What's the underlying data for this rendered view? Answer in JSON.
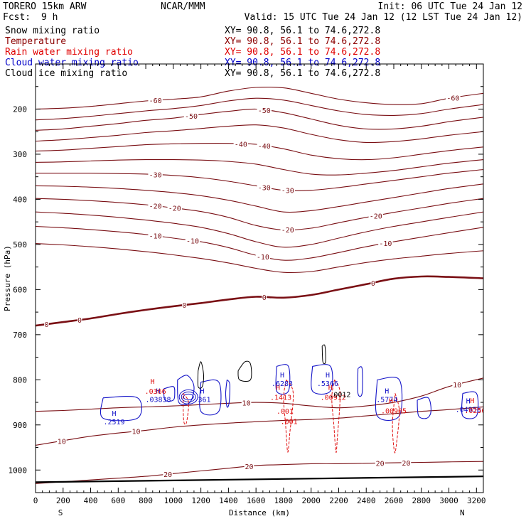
{
  "header": {
    "model": "TORERO  15km ARW",
    "org": "NCAR/MMM",
    "init": "Init: 06 UTC Tue 24 Jan 12",
    "fcst_label": "Fcst:",
    "fcst_value": "9 h",
    "valid": "Valid: 15 UTC Tue 24 Jan 12 (12 LST Tue 24 Jan 12)"
  },
  "fields": [
    {
      "name": "Snow mixing ratio",
      "color": "#000000",
      "xy": "XY=  90.8, 56.1 to  74.6,272.8"
    },
    {
      "name": "Temperature",
      "color": "#8b0000",
      "xy": "XY=  90.8, 56.1 to  74.6,272.8"
    },
    {
      "name": "Rain water mixing ratio",
      "color": "#e00000",
      "xy": "XY=  90.8, 56.1 to  74.6,272.8"
    },
    {
      "name": "Cloud water mixing ratio",
      "color": "#0000c8",
      "xy": "XY=  90.8, 56.1 to  74.6,272.8"
    },
    {
      "name": "Cloud ice mixing ratio",
      "color": "#000000",
      "xy": "XY=  90.8, 56.1 to  74.6,272.8"
    }
  ],
  "chart_data": {
    "type": "contour_cross_section",
    "xlabel": "Distance (km)",
    "ylabel": "Pressure (hPa)",
    "xlim": [
      0,
      3250
    ],
    "ylim": [
      1050,
      100
    ],
    "x_ticks": [
      0,
      200,
      400,
      600,
      800,
      1000,
      1200,
      1400,
      1600,
      1800,
      2000,
      2200,
      2400,
      2600,
      2800,
      3000,
      3200
    ],
    "y_ticks": [
      200,
      300,
      400,
      500,
      600,
      700,
      800,
      900,
      1000
    ],
    "endpoints": {
      "left": "S",
      "right": "N"
    },
    "temperature_contours": [
      {
        "level": -60,
        "x": [
          0,
          200,
          400,
          600,
          800,
          1000,
          1200,
          1400,
          1600,
          1800,
          2000,
          2200,
          2400,
          2600,
          2800,
          3000,
          3250
        ],
        "p": [
          200,
          198,
          194,
          188,
          182,
          178,
          173,
          160,
          152,
          153,
          165,
          178,
          186,
          190,
          188,
          176,
          165
        ],
        "labels": [
          [
            870,
            -60
          ],
          [
            3030,
            -60
          ]
        ]
      },
      {
        "level": -55,
        "x": [
          0,
          200,
          400,
          600,
          800,
          1000,
          1200,
          1400,
          1600,
          1800,
          2000,
          2200,
          2400,
          2600,
          2800,
          3000,
          3250
        ],
        "p": [
          224,
          221,
          216,
          210,
          204,
          199,
          192,
          182,
          176,
          180,
          192,
          204,
          212,
          214,
          210,
          200,
          190
        ],
        "labels": []
      },
      {
        "level": -50,
        "x": [
          0,
          200,
          400,
          600,
          800,
          1000,
          1200,
          1400,
          1600,
          1800,
          2000,
          2200,
          2400,
          2600,
          2800,
          3000,
          3250
        ],
        "p": [
          247,
          244,
          238,
          232,
          225,
          220,
          212,
          205,
          200,
          208,
          222,
          236,
          244,
          244,
          238,
          228,
          218
        ],
        "labels": [
          [
            1130,
            -50
          ],
          [
            1660,
            -50
          ]
        ]
      },
      {
        "level": -45,
        "x": [
          0,
          200,
          400,
          600,
          800,
          1000,
          1200,
          1400,
          1600,
          1800,
          2000,
          2200,
          2400,
          2600,
          2800,
          3000,
          3250
        ],
        "p": [
          271,
          268,
          263,
          258,
          252,
          248,
          243,
          238,
          235,
          242,
          256,
          268,
          274,
          272,
          266,
          258,
          250
        ],
        "labels": []
      },
      {
        "level": -40,
        "x": [
          0,
          200,
          400,
          600,
          800,
          1000,
          1200,
          1400,
          1600,
          1800,
          2000,
          2200,
          2400,
          2600,
          2800,
          3000,
          3250
        ],
        "p": [
          293,
          291,
          287,
          283,
          279,
          277,
          276,
          276,
          278,
          288,
          302,
          310,
          312,
          308,
          300,
          292,
          284
        ],
        "labels": [
          [
            1490,
            -40
          ],
          [
            1660,
            -40
          ]
        ]
      },
      {
        "level": -35,
        "x": [
          0,
          200,
          400,
          600,
          800,
          1000,
          1200,
          1400,
          1600,
          1800,
          2000,
          2200,
          2400,
          2600,
          2800,
          3000,
          3250
        ],
        "p": [
          318,
          317,
          315,
          313,
          312,
          312,
          313,
          316,
          322,
          334,
          344,
          346,
          342,
          336,
          328,
          320,
          312
        ],
        "labels": []
      },
      {
        "level": -30,
        "x": [
          0,
          200,
          400,
          600,
          800,
          1000,
          1200,
          1400,
          1600,
          1800,
          2000,
          2200,
          2400,
          2600,
          2800,
          3000,
          3250
        ],
        "p": [
          342,
          342,
          342,
          343,
          344,
          347,
          352,
          360,
          370,
          380,
          380,
          374,
          366,
          358,
          350,
          342,
          334
        ],
        "labels": [
          [
            870,
            -30
          ],
          [
            1660,
            -30
          ],
          [
            1830,
            -30
          ]
        ]
      },
      {
        "level": -25,
        "x": [
          0,
          200,
          400,
          600,
          800,
          1000,
          1200,
          1400,
          1600,
          1800,
          2000,
          2200,
          2400,
          2600,
          2800,
          3000,
          3250
        ],
        "p": [
          370,
          371,
          373,
          376,
          380,
          385,
          392,
          402,
          415,
          428,
          425,
          416,
          406,
          396,
          386,
          376,
          366
        ],
        "labels": []
      },
      {
        "level": -20,
        "x": [
          0,
          200,
          400,
          600,
          800,
          1000,
          1200,
          1400,
          1600,
          1800,
          2000,
          2200,
          2400,
          2600,
          2800,
          3000,
          3250
        ],
        "p": [
          398,
          400,
          403,
          407,
          412,
          419,
          427,
          440,
          458,
          468,
          464,
          452,
          440,
          429,
          419,
          409,
          398
        ],
        "labels": [
          [
            870,
            -20
          ],
          [
            1010,
            -20
          ],
          [
            1830,
            -20
          ],
          [
            2470,
            -20
          ]
        ]
      },
      {
        "level": -15,
        "x": [
          0,
          200,
          400,
          600,
          800,
          1000,
          1200,
          1400,
          1600,
          1800,
          2000,
          2200,
          2400,
          2600,
          2800,
          3000,
          3250
        ],
        "p": [
          428,
          431,
          435,
          440,
          446,
          453,
          462,
          476,
          494,
          506,
          500,
          486,
          472,
          460,
          450,
          440,
          428
        ],
        "labels": []
      },
      {
        "level": -10,
        "x": [
          0,
          200,
          400,
          600,
          800,
          1000,
          1200,
          1400,
          1600,
          1800,
          2000,
          2200,
          2400,
          2600,
          2800,
          3000,
          3250
        ],
        "p": [
          460,
          463,
          467,
          472,
          478,
          486,
          494,
          507,
          524,
          535,
          530,
          518,
          505,
          494,
          484,
          474,
          462
        ],
        "labels": [
          [
            870,
            -10
          ],
          [
            1140,
            -10
          ],
          [
            1650,
            -10
          ],
          [
            2540,
            -10
          ]
        ]
      },
      {
        "level": -5,
        "x": [
          0,
          200,
          400,
          600,
          800,
          1000,
          1200,
          1400,
          1600,
          1800,
          2000,
          2200,
          2400,
          2600,
          2800,
          3000,
          3250
        ],
        "p": [
          498,
          501,
          505,
          510,
          516,
          523,
          531,
          541,
          553,
          562,
          560,
          550,
          540,
          532,
          526,
          520,
          514
        ],
        "labels": []
      },
      {
        "level": 0,
        "x": [
          0,
          200,
          400,
          600,
          800,
          1000,
          1200,
          1400,
          1600,
          1800,
          2000,
          2200,
          2400,
          2600,
          2800,
          3000,
          3250
        ],
        "p": [
          680,
          672,
          664,
          654,
          645,
          637,
          630,
          622,
          616,
          618,
          612,
          600,
          588,
          576,
          571,
          572,
          575
        ],
        "labels": [
          [
            80,
            0
          ],
          [
            320,
            0
          ],
          [
            1080,
            0
          ],
          [
            1660,
            0
          ],
          [
            2450,
            0
          ]
        ],
        "bold": true
      },
      {
        "level": 10,
        "x": [
          0,
          200,
          400,
          600,
          800,
          1000,
          1200,
          1400,
          1600,
          1800,
          2000,
          2200,
          2400,
          2600,
          2800,
          3000,
          3250
        ],
        "p": [
          870,
          868,
          865,
          862,
          860,
          858,
          855,
          852,
          850,
          852,
          858,
          862,
          858,
          850,
          836,
          815,
          796
        ],
        "labels": [
          [
            1530,
            10
          ],
          [
            3060,
            10
          ]
        ]
      },
      {
        "level": 10,
        "x": [
          0,
          200,
          400,
          600,
          800,
          1000,
          1200,
          1400,
          1600,
          1800,
          2000,
          2200,
          2400,
          2600,
          2800,
          3000,
          3250
        ],
        "p": [
          945,
          935,
          925,
          918,
          912,
          905,
          900,
          896,
          893,
          890,
          888,
          885,
          880,
          875,
          870,
          866,
          860
        ],
        "labels": [
          [
            190,
            10
          ],
          [
            730,
            10
          ]
        ]
      },
      {
        "level": 20,
        "x": [
          0,
          200,
          400,
          600,
          800,
          1000,
          1200,
          1400,
          1600,
          1800,
          2000,
          2200,
          2400,
          2600,
          2800,
          3000,
          3250
        ],
        "p": [
          1030,
          1026,
          1022,
          1018,
          1014,
          1008,
          1002,
          996,
          990,
          988,
          986,
          986,
          985,
          984,
          983,
          982,
          981
        ],
        "labels": [
          [
            960,
            20
          ],
          [
            1550,
            20
          ],
          [
            2500,
            20
          ],
          [
            2690,
            20
          ]
        ]
      }
    ],
    "surface": {
      "x": [
        0,
        3250
      ],
      "p": [
        1027,
        1014
      ]
    },
    "cloud_water_maxima": [
      {
        "x": 570,
        "p": 880,
        "label": "H",
        "value": ".2519"
      },
      {
        "x": 890,
        "p": 830,
        "label": "H",
        "value": ".03838"
      },
      {
        "x": 1210,
        "p": 830,
        "label": "H",
        "value": ".361"
      },
      {
        "x": 1790,
        "p": 795,
        "label": "H",
        "value": ".6283"
      },
      {
        "x": 2120,
        "p": 795,
        "label": "H",
        "value": ".5366"
      },
      {
        "x": 2550,
        "p": 830,
        "label": "H",
        "value": ".5774"
      },
      {
        "x": 3140,
        "p": 852,
        "label": "H",
        "value": ".04956"
      }
    ],
    "rain_water_maxima": [
      {
        "x": 870,
        "p": 825,
        "label": "H",
        "value": ".0366"
      },
      {
        "x": 1780,
        "p": 838,
        "label": "H",
        "value": ".1413"
      },
      {
        "x": 2160,
        "p": 838,
        "label": "H",
        "value": ".00912"
      },
      {
        "x": 2600,
        "p": 868,
        "label": "H",
        "value": ".00905"
      },
      {
        "x": 3190,
        "p": 867,
        "label": "H",
        "value": ".0256"
      }
    ],
    "rain_minor_labels": [
      {
        "x": 1810,
        "p": 875,
        "value": ".001"
      },
      {
        "x": 1840,
        "p": 898,
        "value": ".001"
      }
    ],
    "snow_label": {
      "x": 2210,
      "p": 838,
      "value": ".0012"
    },
    "cloud_water_outlines": [
      [
        [
          490,
          840
        ],
        [
          740,
          840
        ],
        [
          740,
          885
        ],
        [
          490,
          885
        ]
      ],
      [
        [
          930,
          820
        ],
        [
          1000,
          815
        ],
        [
          1010,
          830
        ],
        [
          1000,
          845
        ],
        [
          940,
          845
        ]
      ],
      [
        [
          1030,
          800
        ],
        [
          1100,
          790
        ],
        [
          1150,
          815
        ],
        [
          1120,
          850
        ],
        [
          1040,
          850
        ]
      ],
      [
        [
          1200,
          805
        ],
        [
          1330,
          805
        ],
        [
          1330,
          870
        ],
        [
          1200,
          870
        ]
      ],
      [
        [
          1390,
          800
        ],
        [
          1410,
          810
        ],
        [
          1405,
          850
        ],
        [
          1390,
          860
        ],
        [
          1380,
          830
        ]
      ],
      [
        [
          1750,
          770
        ],
        [
          1835,
          770
        ],
        [
          1835,
          825
        ],
        [
          1750,
          825
        ]
      ],
      [
        [
          2010,
          770
        ],
        [
          2140,
          770
        ],
        [
          2140,
          825
        ],
        [
          2010,
          825
        ]
      ],
      [
        [
          2340,
          775
        ],
        [
          2370,
          775
        ],
        [
          2370,
          830
        ],
        [
          2340,
          830
        ]
      ],
      [
        [
          2480,
          800
        ],
        [
          2640,
          800
        ],
        [
          2640,
          880
        ],
        [
          2480,
          880
        ]
      ],
      [
        [
          2770,
          845
        ],
        [
          2850,
          840
        ],
        [
          2870,
          870
        ],
        [
          2840,
          885
        ],
        [
          2780,
          880
        ]
      ],
      [
        [
          3100,
          830
        ],
        [
          3200,
          830
        ],
        [
          3200,
          880
        ],
        [
          3100,
          880
        ]
      ]
    ],
    "rain_outlines": [
      [
        [
          1820,
          800
        ],
        [
          1870,
          830
        ],
        [
          1845,
          920
        ],
        [
          1830,
          960
        ],
        [
          1815,
          900
        ],
        [
          1800,
          840
        ]
      ],
      [
        [
          2170,
          800
        ],
        [
          2210,
          830
        ],
        [
          2190,
          930
        ],
        [
          2180,
          960
        ],
        [
          2165,
          900
        ],
        [
          2150,
          840
        ]
      ],
      [
        [
          2610,
          830
        ],
        [
          2640,
          870
        ],
        [
          2620,
          940
        ],
        [
          2605,
          960
        ],
        [
          2590,
          900
        ]
      ],
      [
        [
          1070,
          830
        ],
        [
          1110,
          850
        ],
        [
          1095,
          895
        ],
        [
          1075,
          890
        ]
      ]
    ],
    "snow_outlines": [
      [
        [
          1470,
          780
        ],
        [
          1520,
          760
        ],
        [
          1560,
          765
        ],
        [
          1560,
          800
        ],
        [
          1480,
          800
        ]
      ],
      [
        [
          2080,
          725
        ],
        [
          2100,
          725
        ],
        [
          2105,
          760
        ],
        [
          2085,
          760
        ]
      ],
      [
        [
          1180,
          780
        ],
        [
          1200,
          760
        ],
        [
          1220,
          790
        ],
        [
          1210,
          815
        ],
        [
          1180,
          815
        ]
      ]
    ]
  }
}
